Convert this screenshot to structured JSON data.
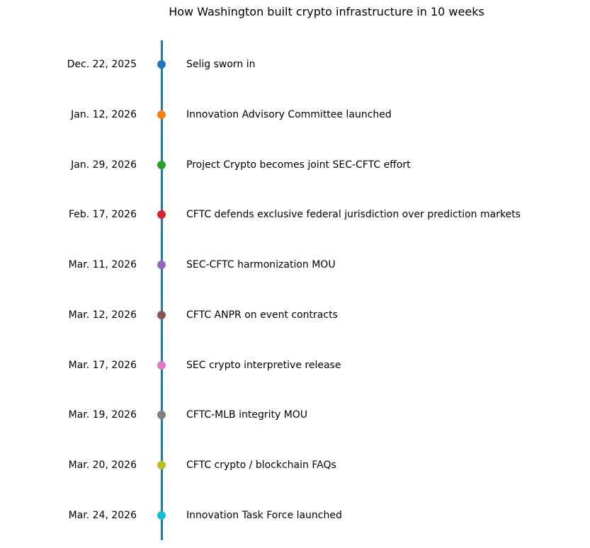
{
  "title": "How Washington built crypto infrastructure in 10 weeks",
  "line_color": "#1f77b4",
  "events": [
    {
      "date": "Dec. 22, 2025",
      "label": "Selig sworn in",
      "color": "#1f77b4"
    },
    {
      "date": "Jan. 12, 2026",
      "label": "Innovation Advisory Committee launched",
      "color": "#ff7f0e"
    },
    {
      "date": "Jan. 29, 2026",
      "label": "Project Crypto becomes joint SEC-CFTC effort",
      "color": "#2ca02c"
    },
    {
      "date": "Feb. 17, 2026",
      "label": "CFTC defends exclusive federal jurisdiction over prediction markets",
      "color": "#d62728"
    },
    {
      "date": "Mar. 11, 2026",
      "label": "SEC-CFTC harmonization MOU",
      "color": "#9467bd"
    },
    {
      "date": "Mar. 12, 2026",
      "label": "CFTC ANPR on event contracts",
      "color": "#8c564b"
    },
    {
      "date": "Mar. 17, 2026",
      "label": "SEC crypto interpretive release",
      "color": "#e377c2"
    },
    {
      "date": "Mar. 19, 2026",
      "label": "CFTC-MLB integrity MOU",
      "color": "#7f7f7f"
    },
    {
      "date": "Mar. 20, 2026",
      "label": "CFTC crypto / blockchain FAQs",
      "color": "#bcbd22"
    },
    {
      "date": "Mar. 24, 2026",
      "label": "Innovation Task Force launched",
      "color": "#17becf"
    }
  ]
}
